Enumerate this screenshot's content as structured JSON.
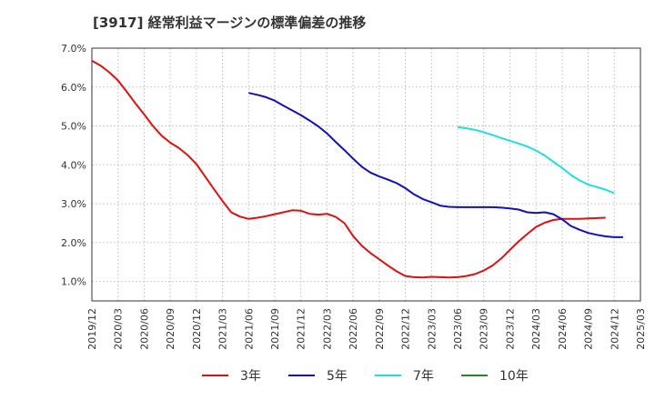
{
  "chart_data": {
    "type": "line",
    "title": "[3917]  経常利益マージンの標準偏差の推移",
    "xlabel": "",
    "ylabel": "",
    "ylim": [
      0.5,
      7.0
    ],
    "yticks": [
      "1.0%",
      "2.0%",
      "3.0%",
      "4.0%",
      "5.0%",
      "6.0%",
      "7.0%"
    ],
    "ytick_values": [
      1,
      2,
      3,
      4,
      5,
      6,
      7
    ],
    "xticks": [
      "2019/12",
      "2020/03",
      "2020/06",
      "2020/09",
      "2020/12",
      "2021/03",
      "2021/06",
      "2021/09",
      "2021/12",
      "2022/03",
      "2022/06",
      "2022/09",
      "2022/12",
      "2023/03",
      "2023/06",
      "2023/09",
      "2023/12",
      "2024/03",
      "2024/06",
      "2024/09",
      "2024/12",
      "2025/03"
    ],
    "grid": true,
    "legend_position": "bottom",
    "series": [
      {
        "name": "3年",
        "color": "#dd1111",
        "start": "2019/12",
        "values": [
          6.68,
          6.55,
          6.38,
          6.17,
          5.88,
          5.58,
          5.3,
          5.0,
          4.75,
          4.57,
          4.43,
          4.25,
          4.02,
          3.7,
          3.38,
          3.07,
          2.78,
          2.67,
          2.61,
          2.64,
          2.68,
          2.73,
          2.78,
          2.83,
          2.82,
          2.74,
          2.72,
          2.74,
          2.66,
          2.5,
          2.17,
          1.92,
          1.73,
          1.57,
          1.41,
          1.26,
          1.14,
          1.11,
          1.1,
          1.12,
          1.11,
          1.1,
          1.11,
          1.14,
          1.19,
          1.28,
          1.41,
          1.59,
          1.81,
          2.03,
          2.22,
          2.4,
          2.51,
          2.58,
          2.61,
          2.61,
          2.61,
          2.62,
          2.63,
          2.64
        ]
      },
      {
        "name": "5年",
        "color": "#1111bb",
        "start": "2021/06",
        "values": [
          5.85,
          5.8,
          5.74,
          5.65,
          5.52,
          5.4,
          5.28,
          5.14,
          4.99,
          4.81,
          4.59,
          4.38,
          4.16,
          3.95,
          3.8,
          3.7,
          3.62,
          3.53,
          3.4,
          3.24,
          3.12,
          3.04,
          2.95,
          2.92,
          2.91,
          2.91,
          2.91,
          2.91,
          2.91,
          2.9,
          2.88,
          2.85,
          2.78,
          2.76,
          2.78,
          2.73,
          2.6,
          2.43,
          2.33,
          2.25,
          2.2,
          2.16,
          2.14,
          2.14
        ]
      },
      {
        "name": "7年",
        "color": "#22dddd",
        "start": "2023/06",
        "values": [
          4.97,
          4.94,
          4.9,
          4.84,
          4.77,
          4.69,
          4.62,
          4.55,
          4.47,
          4.37,
          4.24,
          4.08,
          3.92,
          3.74,
          3.6,
          3.49,
          3.43,
          3.36,
          3.27
        ]
      },
      {
        "name": "10年",
        "color": "#228822",
        "start": "",
        "values": []
      }
    ]
  }
}
